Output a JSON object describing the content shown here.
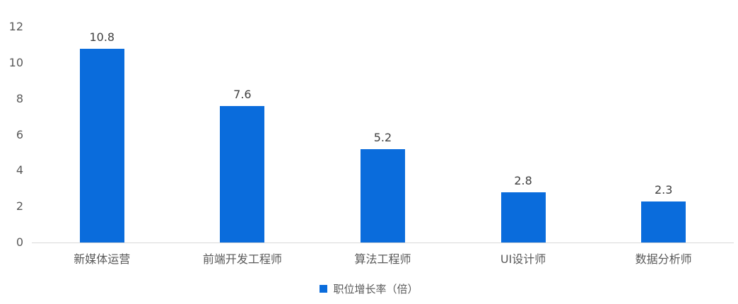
{
  "chart_data": {
    "type": "bar",
    "title": "",
    "categories": [
      "新媒体运营",
      "前端开发工程师",
      "算法工程师",
      "UI设计师",
      "数据分析师"
    ],
    "values": [
      10.8,
      7.6,
      5.2,
      2.8,
      2.3
    ],
    "series_name": "职位增长率（倍）",
    "xlabel": "",
    "ylabel": "",
    "ylim": [
      0,
      12
    ],
    "yticks": [
      0,
      2,
      4,
      6,
      8,
      10,
      12
    ],
    "grid": false,
    "legend_position": "bottom",
    "bar_color": "#0a6cdc"
  },
  "legend": {
    "label": "职位增长率（倍）"
  },
  "colors": {
    "bar": "#0a6cdc",
    "axis_text": "#595959",
    "value_text": "#404040",
    "axis_line": "#d9d9d9",
    "background": "#ffffff"
  }
}
